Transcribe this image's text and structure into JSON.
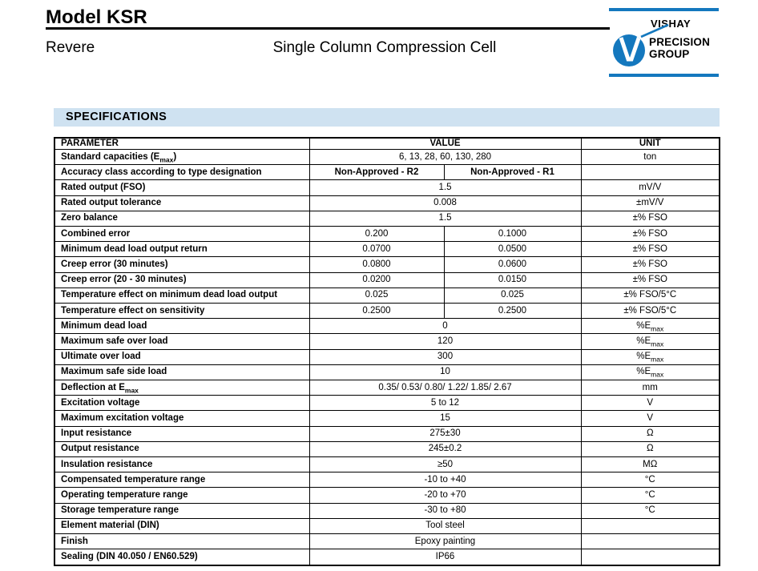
{
  "header": {
    "model": "Model KSR",
    "brand": "Revere",
    "subtitle": "Single Column Compression Cell",
    "logo": {
      "vishay": "VISHAY",
      "precision": "PRECISION",
      "group": "GROUP"
    }
  },
  "section_title": "SPECIFICATIONS",
  "colors": {
    "accent_blue": "#1478be",
    "section_bg": "#cfe2f1"
  },
  "table": {
    "headers": {
      "parameter": "PARAMETER",
      "value": "VALUE",
      "unit": "UNIT"
    },
    "rows": [
      {
        "parameter": "Standard capacities (E_{max})",
        "values": [
          "6, 13, 28, 60, 130, 280"
        ],
        "unit": "ton"
      },
      {
        "parameter": "Accuracy class according to type designation",
        "values": [
          "Non-Approved - R2",
          "Non-Approved - R1"
        ],
        "unit": "",
        "bold": true
      },
      {
        "parameter": "Rated output (FSO)",
        "values": [
          "1.5"
        ],
        "unit": "mV/V"
      },
      {
        "parameter": "Rated output tolerance",
        "values": [
          "0.008"
        ],
        "unit": "±mV/V"
      },
      {
        "parameter": "Zero balance",
        "values": [
          "1.5"
        ],
        "unit": "±% FSO"
      },
      {
        "parameter": "Combined error",
        "values": [
          "0.200",
          "0.1000"
        ],
        "unit": "±% FSO"
      },
      {
        "parameter": "Minimum dead load output return",
        "values": [
          "0.0700",
          "0.0500"
        ],
        "unit": "±% FSO"
      },
      {
        "parameter": "Creep error (30 minutes)",
        "values": [
          "0.0800",
          "0.0600"
        ],
        "unit": "±% FSO"
      },
      {
        "parameter": "Creep error (20 - 30 minutes)",
        "values": [
          "0.0200",
          "0.0150"
        ],
        "unit": "±% FSO"
      },
      {
        "parameter": "Temperature effect on minimum dead load output",
        "values": [
          "0.025",
          "0.025"
        ],
        "unit": "±% FSO/5°C"
      },
      {
        "parameter": "Temperature effect on sensitivity",
        "values": [
          "0.2500",
          "0.2500"
        ],
        "unit": "±% FSO/5°C"
      },
      {
        "parameter": "Minimum dead load",
        "values": [
          "0"
        ],
        "unit": "%E_{max}"
      },
      {
        "parameter": "Maximum safe over load",
        "values": [
          "120"
        ],
        "unit": "%E_{max}"
      },
      {
        "parameter": "Ultimate over load",
        "values": [
          "300"
        ],
        "unit": "%E_{max}"
      },
      {
        "parameter": "Maximum safe side load",
        "values": [
          "10"
        ],
        "unit": "%E_{max}"
      },
      {
        "parameter": "Deflection at E_{max}",
        "values": [
          "0.35/ 0.53/ 0.80/ 1.22/ 1.85/ 2.67"
        ],
        "unit": "mm"
      },
      {
        "parameter": "Excitation voltage",
        "values": [
          "5 to 12"
        ],
        "unit": "V"
      },
      {
        "parameter": "Maximum excitation voltage",
        "values": [
          "15"
        ],
        "unit": "V"
      },
      {
        "parameter": "Input resistance",
        "values": [
          "275±30"
        ],
        "unit": "Ω"
      },
      {
        "parameter": "Output resistance",
        "values": [
          "245±0.2"
        ],
        "unit": "Ω"
      },
      {
        "parameter": "Insulation resistance",
        "values": [
          "≥50"
        ],
        "unit": "MΩ"
      },
      {
        "parameter": "Compensated temperature range",
        "values": [
          "-10 to +40"
        ],
        "unit": "°C"
      },
      {
        "parameter": "Operating temperature range",
        "values": [
          "-20 to +70"
        ],
        "unit": "°C"
      },
      {
        "parameter": "Storage temperature range",
        "values": [
          "-30 to +80"
        ],
        "unit": "°C"
      },
      {
        "parameter": "Element material (DIN)",
        "values": [
          "Tool steel"
        ],
        "unit": ""
      },
      {
        "parameter": "Finish",
        "values": [
          "Epoxy painting"
        ],
        "unit": ""
      },
      {
        "parameter": "Sealing (DIN 40.050 / EN60.529)",
        "values": [
          "IP66"
        ],
        "unit": ""
      }
    ]
  }
}
